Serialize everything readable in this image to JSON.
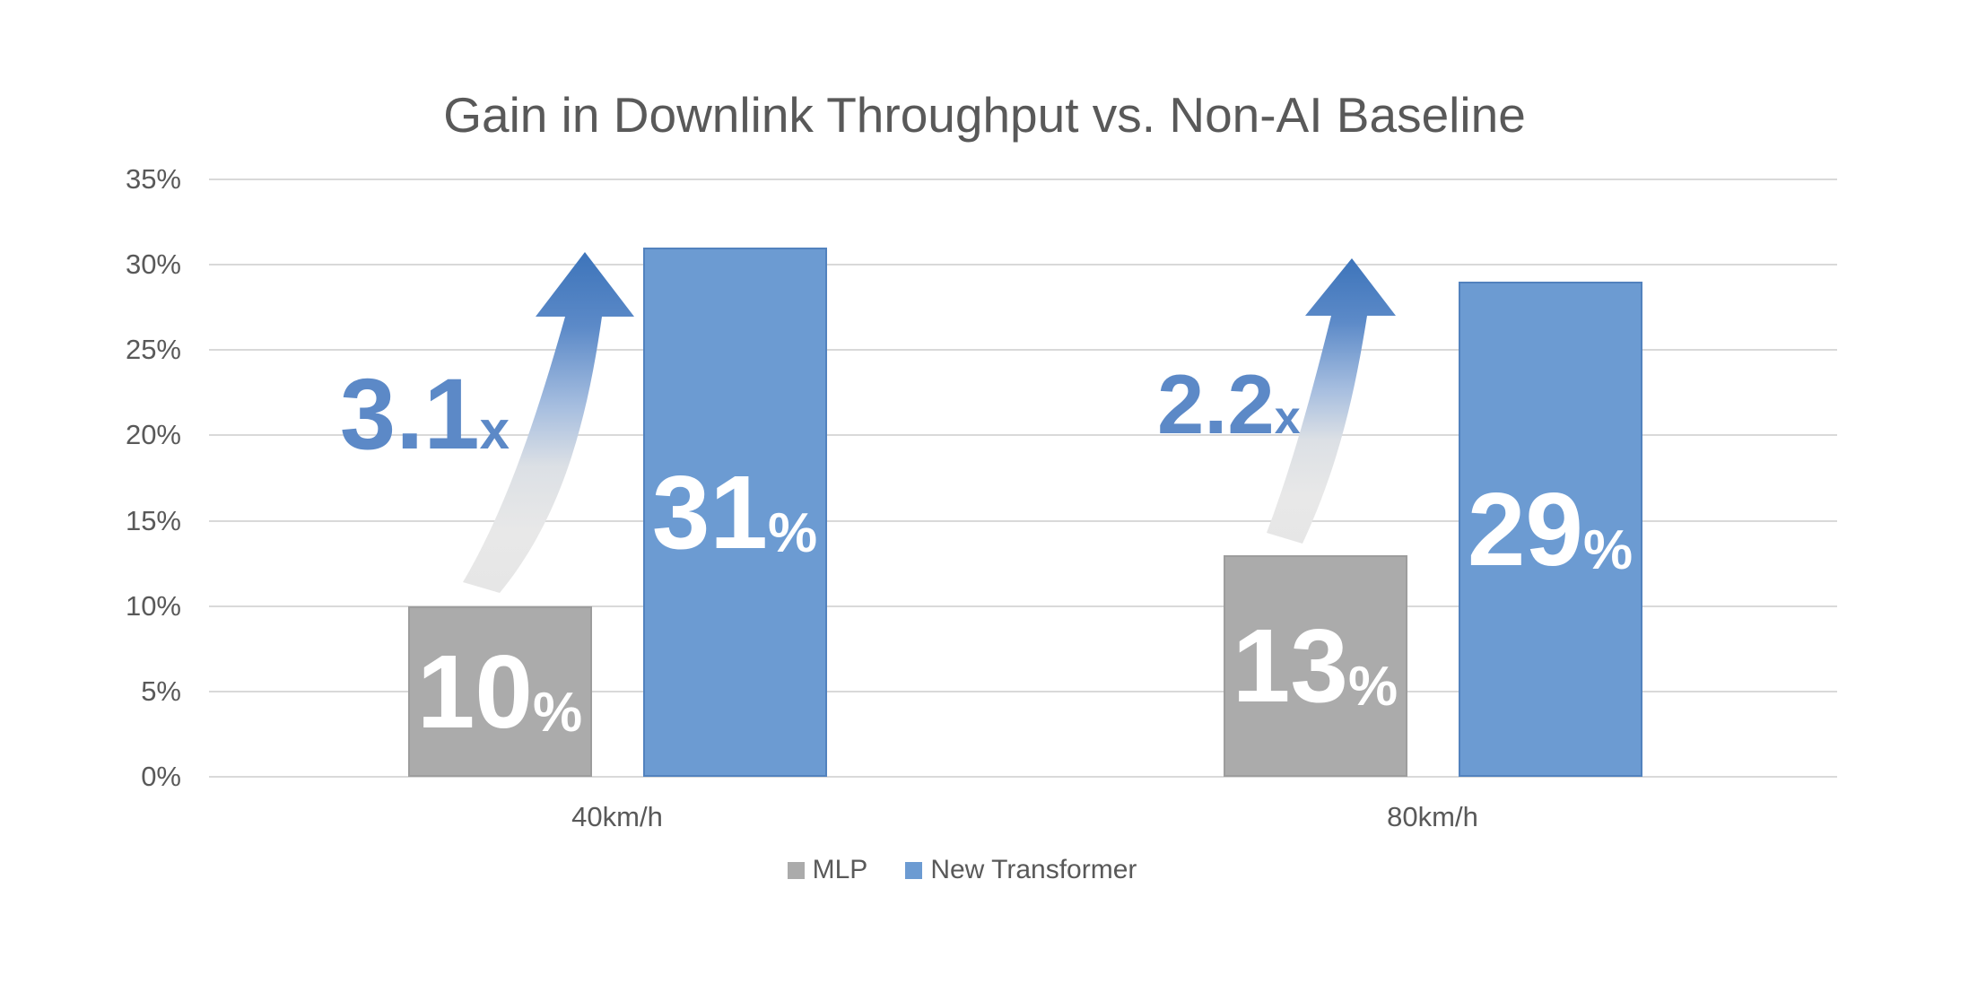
{
  "chart_data": {
    "type": "bar",
    "title": "Gain in Downlink Throughput vs. Non-AI Baseline",
    "categories": [
      "40km/h",
      "80km/h"
    ],
    "series": [
      {
        "name": "MLP",
        "color": "#ABABAB",
        "border_color": "#9D9D9D",
        "values": [
          10,
          13
        ]
      },
      {
        "name": "New Transformer",
        "color": "#6C9BD2",
        "border_color": "#5282BE",
        "values": [
          31,
          29
        ]
      }
    ],
    "value_labels": [
      [
        {
          "number": "10",
          "suffix": "%"
        },
        {
          "number": "13",
          "suffix": "%"
        }
      ],
      [
        {
          "number": "31",
          "suffix": "%"
        },
        {
          "number": "29",
          "suffix": "%"
        }
      ]
    ],
    "annotations": [
      {
        "number": "3.1",
        "suffix": "x",
        "category": "40km/h"
      },
      {
        "number": "2.2",
        "suffix": "x",
        "category": "80km/h"
      }
    ],
    "yticks": [
      {
        "value": 35,
        "label": "35%"
      },
      {
        "value": 30,
        "label": "30%"
      },
      {
        "value": 25,
        "label": "25%"
      },
      {
        "value": 20,
        "label": "20%"
      },
      {
        "value": 15,
        "label": "15%"
      },
      {
        "value": 10,
        "label": "10%"
      },
      {
        "value": 5,
        "label": "5%"
      },
      {
        "value": 0,
        "label": "0%"
      }
    ],
    "ylim": [
      0,
      35
    ],
    "xlabel": "",
    "ylabel": "",
    "grid": "horizontal",
    "legend_position": "bottom",
    "legend": [
      "MLP",
      "New Transformer"
    ]
  },
  "colors": {
    "background": "#FFFFFF",
    "title_text": "#595959",
    "axis_text": "#595959",
    "gridline": "#D9D9D9",
    "bar_value_text": "#FFFFFF",
    "annotation_text": "#5C89C7",
    "arrow_gradient_top": "#3D74BA",
    "arrow_gradient_bottom": "#E8E8E8"
  }
}
